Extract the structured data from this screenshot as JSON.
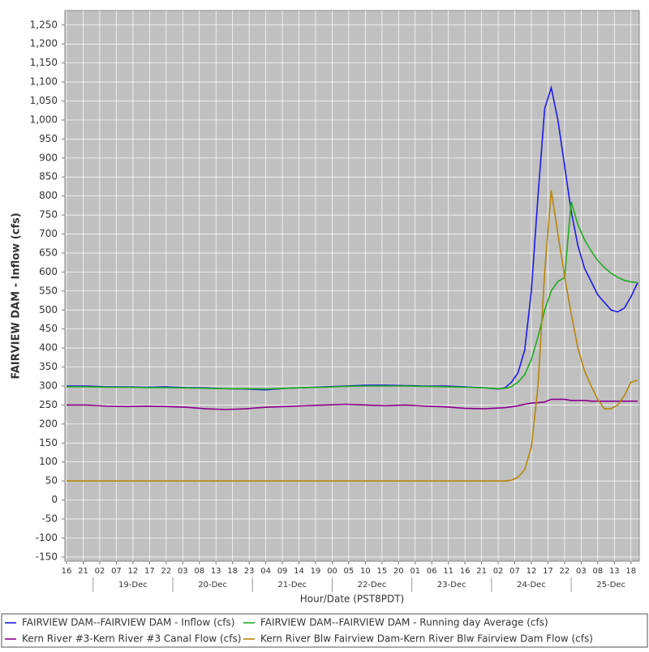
{
  "chart_data": {
    "type": "line",
    "y_label": "FAIRVIEW DAM - Inflow (cfs)",
    "x_label": "Hour/Date (PST8PDT)",
    "grid": true,
    "background": "#c0c0c0",
    "legend_position": "bottom",
    "xlim": [
      -0.5,
      172.5
    ],
    "ylim": [
      -161,
      1288
    ],
    "yticks": [
      -150,
      -100,
      -50,
      0,
      50,
      100,
      150,
      200,
      250,
      300,
      350,
      400,
      450,
      500,
      550,
      600,
      650,
      700,
      750,
      800,
      850,
      900,
      950,
      {
        "value": 1000,
        "label": "1,000"
      },
      {
        "value": 1050,
        "label": "1,050"
      },
      {
        "value": 1100,
        "label": "1,100"
      },
      {
        "value": 1150,
        "label": "1,150"
      },
      {
        "value": 1200,
        "label": "1,200"
      },
      {
        "value": 1250,
        "label": "1,250"
      }
    ],
    "xticks": [
      {
        "value": 0,
        "label": "16"
      },
      {
        "value": 5,
        "label": "21"
      },
      {
        "value": 10,
        "label": "02"
      },
      {
        "value": 15,
        "label": "07"
      },
      {
        "value": 20,
        "label": "12"
      },
      {
        "value": 25,
        "label": "17"
      },
      {
        "value": 30,
        "label": "22"
      },
      {
        "value": 35,
        "label": "03"
      },
      {
        "value": 40,
        "label": "08"
      },
      {
        "value": 45,
        "label": "13"
      },
      {
        "value": 50,
        "label": "18"
      },
      {
        "value": 55,
        "label": "23"
      },
      {
        "value": 60,
        "label": "04"
      },
      {
        "value": 65,
        "label": "09"
      },
      {
        "value": 70,
        "label": "14"
      },
      {
        "value": 75,
        "label": "19"
      },
      {
        "value": 80,
        "label": "00"
      },
      {
        "value": 85,
        "label": "05"
      },
      {
        "value": 90,
        "label": "10"
      },
      {
        "value": 95,
        "label": "15"
      },
      {
        "value": 100,
        "label": "20"
      },
      {
        "value": 105,
        "label": "01"
      },
      {
        "value": 110,
        "label": "06"
      },
      {
        "value": 115,
        "label": "11"
      },
      {
        "value": 120,
        "label": "16"
      },
      {
        "value": 125,
        "label": "21"
      },
      {
        "value": 130,
        "label": "02"
      },
      {
        "value": 135,
        "label": "07"
      },
      {
        "value": 140,
        "label": "12"
      },
      {
        "value": 145,
        "label": "17"
      },
      {
        "value": 150,
        "label": "22"
      },
      {
        "value": 155,
        "label": "03"
      },
      {
        "value": 160,
        "label": "08"
      },
      {
        "value": 165,
        "label": "13"
      },
      {
        "value": 170,
        "label": "18"
      }
    ],
    "date_ticks": [
      {
        "value": 20,
        "label": "19-Dec"
      },
      {
        "value": 44,
        "label": "20-Dec"
      },
      {
        "value": 68,
        "label": "21-Dec"
      },
      {
        "value": 92,
        "label": "22-Dec"
      },
      {
        "value": 116,
        "label": "23-Dec"
      },
      {
        "value": 140,
        "label": "24-Dec"
      },
      {
        "value": 164,
        "label": "25-Dec"
      }
    ],
    "x": [
      0,
      6,
      12,
      18,
      24,
      30,
      36,
      42,
      48,
      54,
      60,
      66,
      72,
      78,
      84,
      90,
      96,
      102,
      108,
      114,
      120,
      126,
      130,
      132,
      134,
      136,
      138,
      140,
      142,
      144,
      146,
      148,
      150,
      152,
      154,
      156,
      158,
      160,
      162,
      164,
      166,
      168,
      170,
      172
    ],
    "series": [
      {
        "name": "FAIRVIEW DAM--FAIRVIEW DAM - Inflow  (cfs)",
        "color": "#1c1ce6",
        "values": [
          300,
          300,
          298,
          298,
          297,
          298,
          296,
          295,
          293,
          292,
          290,
          294,
          296,
          298,
          300,
          302,
          302,
          301,
          300,
          300,
          298,
          295,
          292,
          295,
          310,
          335,
          395,
          550,
          800,
          1030,
          1085,
          1000,
          880,
          760,
          670,
          610,
          575,
          540,
          520,
          500,
          495,
          505,
          535,
          572
        ]
      },
      {
        "name": "FAIRVIEW DAM--FAIRVIEW DAM - Running day Average  (cfs)",
        "color": "#22aa22",
        "values": [
          298,
          298,
          297,
          297,
          296,
          296,
          295,
          294,
          293,
          293,
          292,
          294,
          296,
          297,
          299,
          300,
          300,
          300,
          299,
          298,
          297,
          295,
          293,
          294,
          298,
          310,
          330,
          370,
          430,
          500,
          550,
          575,
          585,
          785,
          725,
          685,
          655,
          630,
          612,
          597,
          586,
          578,
          574,
          572
        ]
      },
      {
        "name": "Kern River #3-Kern River #3 Canal Flow  (cfs)",
        "color": "#8b008b",
        "values": [
          250,
          250,
          247,
          246,
          247,
          246,
          244,
          240,
          238,
          240,
          244,
          246,
          248,
          250,
          252,
          250,
          248,
          250,
          247,
          245,
          241,
          240,
          242,
          243,
          245,
          248,
          252,
          255,
          256,
          258,
          265,
          265,
          265,
          262,
          262,
          262,
          260,
          260,
          260,
          260,
          260,
          260,
          260,
          260
        ]
      },
      {
        "name": "Kern River Blw Fairview Dam-Kern River Blw Fairview Dam Flow  (cfs)",
        "color": "#b8860b",
        "values": [
          50,
          50,
          50,
          50,
          50,
          50,
          50,
          50,
          50,
          50,
          50,
          50,
          50,
          50,
          50,
          50,
          50,
          50,
          50,
          50,
          50,
          50,
          50,
          50,
          52,
          60,
          80,
          140,
          300,
          600,
          815,
          700,
          590,
          490,
          400,
          340,
          300,
          265,
          240,
          240,
          250,
          275,
          310,
          315
        ]
      }
    ]
  }
}
